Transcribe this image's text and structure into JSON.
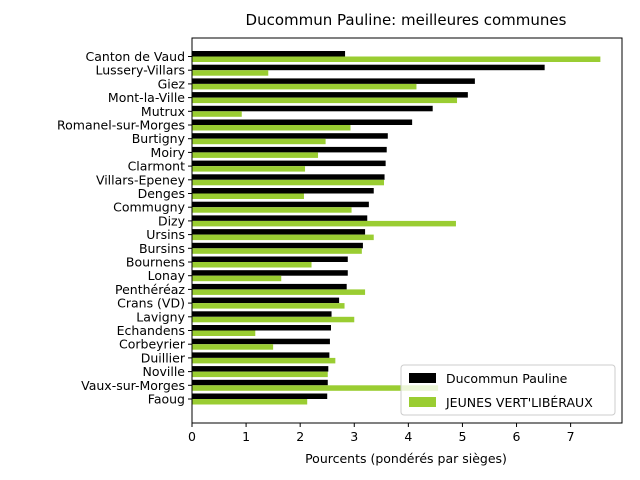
{
  "chart_data": {
    "type": "bar",
    "orientation": "horizontal",
    "title": "Ducommun Pauline: meilleures communes",
    "xlabel": "Pourcents (pondérés par sièges)",
    "ylabel": "",
    "xlim": [
      0,
      7.95
    ],
    "xticks": [
      "0",
      "1",
      "2",
      "3",
      "4",
      "5",
      "6",
      "7"
    ],
    "grid": false,
    "legend_position": "lower-right",
    "categories": [
      "Canton de Vaud",
      "Lussery-Villars",
      "Giez",
      "Mont-la-Ville",
      "Mutrux",
      "Romanel-sur-Morges",
      "Burtigny",
      "Moiry",
      "Clarmont",
      "Villars-Epeney",
      "Denges",
      "Commugny",
      "Dizy",
      "Ursins",
      "Bursins",
      "Bournens",
      "Lonay",
      "Penthéréaz",
      "Crans (VD)",
      "Lavigny",
      "Echandens",
      "Corbeyrier",
      "Duillier",
      "Noville",
      "Vaux-sur-Morges",
      "Faoug"
    ],
    "series": [
      {
        "name": "Ducommun Pauline",
        "color": "#000000",
        "values": [
          2.83,
          6.52,
          5.23,
          5.1,
          4.45,
          4.07,
          3.62,
          3.6,
          3.58,
          3.56,
          3.36,
          3.27,
          3.24,
          3.2,
          3.16,
          2.88,
          2.88,
          2.86,
          2.72,
          2.58,
          2.57,
          2.55,
          2.54,
          2.52,
          2.51,
          2.5
        ]
      },
      {
        "name": "JEUNES VERT'LIBÉRAUX",
        "color": "#9acd32",
        "values": [
          7.55,
          1.41,
          4.15,
          4.9,
          0.92,
          2.93,
          2.47,
          2.33,
          2.09,
          3.55,
          2.07,
          2.95,
          4.88,
          3.36,
          3.14,
          2.21,
          1.65,
          3.2,
          2.82,
          3.0,
          1.17,
          1.5,
          2.65,
          2.51,
          4.55,
          2.13
        ]
      }
    ]
  }
}
